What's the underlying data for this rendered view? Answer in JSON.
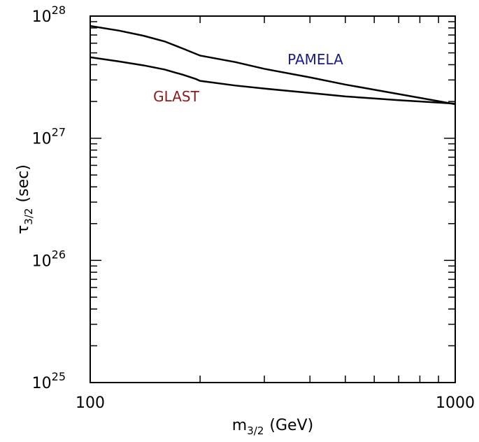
{
  "chart_data": {
    "type": "line",
    "title": "",
    "xlabel": {
      "base": "m",
      "sub": "3/2",
      "unit": "(GeV)"
    },
    "ylabel": {
      "base": "τ",
      "sub": "3/2",
      "unit": "(sec)"
    },
    "x_scale": "log",
    "y_scale": "log",
    "xlim": [
      100,
      1000
    ],
    "ylim": [
      1e+25,
      1e+28
    ],
    "grid": false,
    "x_tick_labels": [
      {
        "value": 100,
        "label": "100"
      },
      {
        "value": 1000,
        "label": "1000"
      }
    ],
    "y_tick_labels": [
      {
        "value": 1e+25,
        "base": "10",
        "exp": "25"
      },
      {
        "value": 1e+26,
        "base": "10",
        "exp": "26"
      },
      {
        "value": 1e+27,
        "base": "10",
        "exp": "27"
      },
      {
        "value": 1e+28,
        "base": "10",
        "exp": "28"
      }
    ],
    "series": [
      {
        "name": "PAMELA",
        "color": "#1a1a8c",
        "x": [
          100,
          120,
          140,
          160,
          180,
          195,
          200,
          250,
          300,
          400,
          500,
          700,
          1000
        ],
        "y": [
          8.3e+27,
          7.6e+27,
          6.9e+27,
          6.2e+27,
          5.4e+27,
          4.9e+27,
          4.75e+27,
          4.2e+27,
          3.7e+27,
          3.15e+27,
          2.75e+27,
          2.3e+27,
          1.9e+27
        ]
      },
      {
        "name": "GLAST",
        "color": "#8b1a1a",
        "x": [
          100,
          120,
          140,
          160,
          180,
          195,
          200,
          250,
          300,
          400,
          500,
          700,
          1000
        ],
        "y": [
          4.6e+27,
          4.25e+27,
          3.95e+27,
          3.65e+27,
          3.3e+27,
          3.05e+27,
          2.95e+27,
          2.7e+27,
          2.55e+27,
          2.35e+27,
          2.2e+27,
          2.05e+27,
          1.92e+27
        ]
      }
    ]
  }
}
